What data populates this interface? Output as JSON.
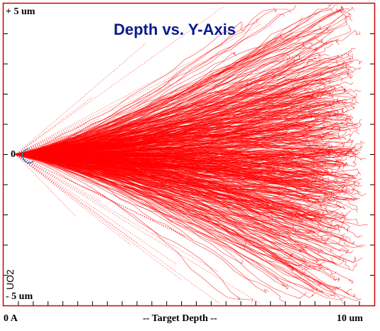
{
  "chart_data": {
    "type": "scatter",
    "title": "Depth vs. Y-Axis",
    "xlabel": "-- Target Depth --",
    "x_tick_labels": {
      "left": "0 A",
      "right": "10 um"
    },
    "y_tick_labels": {
      "top": "+ 5 um",
      "zero": "0",
      "bottom": "- 5 um"
    },
    "ion_label": "UO2",
    "xlim": [
      0,
      10
    ],
    "ylim": [
      -5,
      5
    ],
    "x_unit": "um",
    "y_unit": "um",
    "minor_ticks_x": 25,
    "minor_ticks_y": 10,
    "grid": false,
    "series": [
      {
        "kind": "ion trajectories",
        "color": "#ff0000",
        "tracks": 600,
        "range_um": 9.7,
        "lateral_spread_um": 3.6,
        "max_lateral_um": 5.0
      }
    ],
    "surface_marker_color": "#2a78c8",
    "frame_color": "#cc0000"
  }
}
